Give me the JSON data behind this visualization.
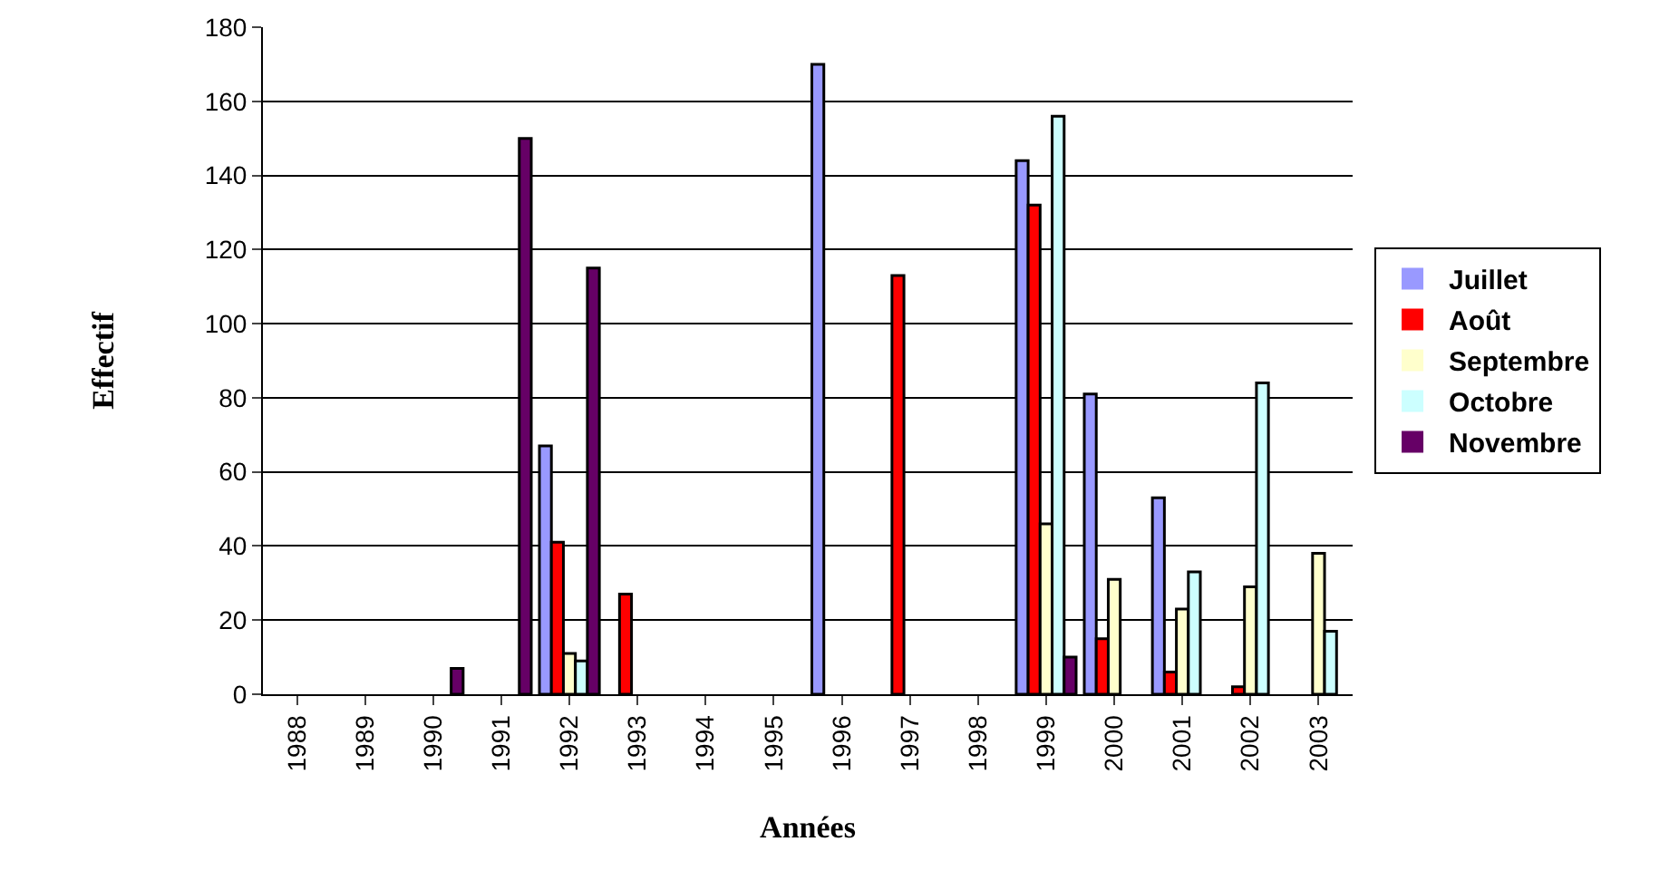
{
  "chart_data": {
    "type": "bar",
    "xlabel": "Années",
    "ylabel": "Effectif",
    "categories": [
      "1988",
      "1989",
      "1990",
      "1991",
      "1992",
      "1993",
      "1994",
      "1995",
      "1996",
      "1997",
      "1998",
      "1999",
      "2000",
      "2001",
      "2002",
      "2003"
    ],
    "series": [
      {
        "name": "Juillet",
        "color": "#9999ff",
        "values": [
          0,
          0,
          0,
          0,
          67,
          0,
          0,
          0,
          170,
          0,
          0,
          144,
          81,
          53,
          0,
          0
        ]
      },
      {
        "name": "Août",
        "color": "#ff0000",
        "values": [
          0,
          0,
          0,
          0,
          41,
          27,
          0,
          0,
          0,
          113,
          0,
          132,
          15,
          6,
          2,
          0
        ]
      },
      {
        "name": "Septembre",
        "color": "#ffffcc",
        "values": [
          0,
          0,
          0,
          0,
          11,
          0,
          0,
          0,
          0,
          0,
          0,
          46,
          31,
          23,
          29,
          38
        ]
      },
      {
        "name": "Octobre",
        "color": "#ccffff",
        "values": [
          0,
          0,
          0,
          0,
          9,
          0,
          0,
          0,
          0,
          0,
          0,
          156,
          0,
          33,
          84,
          17
        ]
      },
      {
        "name": "Novembre",
        "color": "#660066",
        "values": [
          0,
          0,
          7,
          150,
          115,
          0,
          0,
          0,
          0,
          0,
          0,
          10,
          0,
          0,
          0,
          0
        ]
      }
    ],
    "ylim": [
      0,
      180
    ],
    "yticks": [
      0,
      20,
      40,
      60,
      80,
      100,
      120,
      140,
      160,
      180
    ],
    "grid": "y",
    "legend": "right"
  }
}
